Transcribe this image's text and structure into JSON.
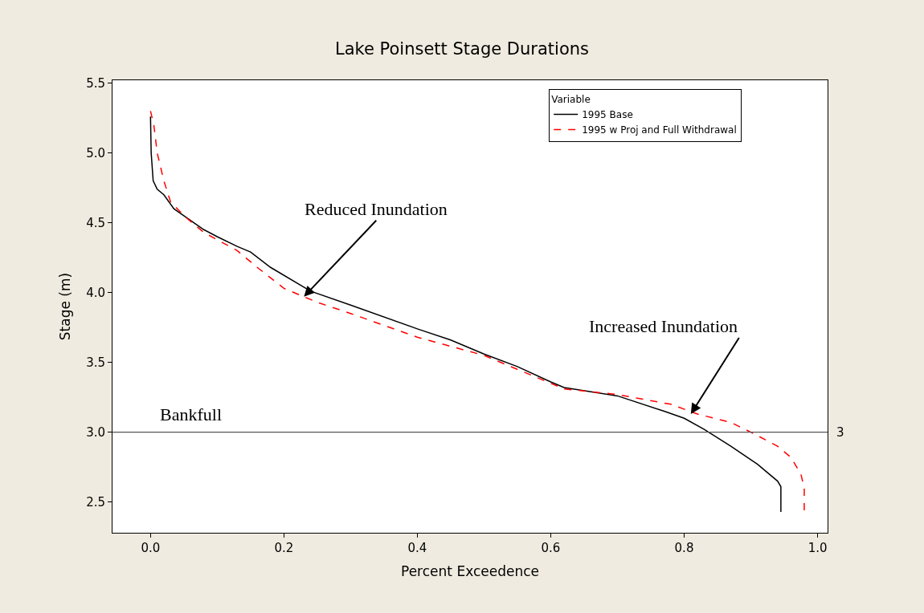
{
  "chart_data": {
    "type": "line",
    "title": "Lake Poinsett Stage Durations",
    "xlabel": "Percent Exceedence",
    "ylabel": "Stage (m)",
    "legend_title": "Variable",
    "xlim": [
      -0.057,
      1.015
    ],
    "ylim": [
      2.28,
      5.52
    ],
    "xticks": [
      {
        "value": 0,
        "label": "0.0"
      },
      0.2,
      0.4,
      0.6,
      0.8,
      {
        "value": 1,
        "label": "1.0"
      }
    ],
    "yticks": [
      2.5,
      {
        "value": 3,
        "label": "3.0"
      },
      3.5,
      {
        "value": 4,
        "label": "4.0"
      },
      4.5,
      {
        "value": 5,
        "label": "5.0"
      },
      5.5
    ],
    "legend": "top right",
    "marker": "none",
    "series": [
      {
        "name": "1995 Base",
        "color": "#000000",
        "line_style": "solid",
        "x": [
          0.0,
          0.001,
          0.004,
          0.01,
          0.02,
          0.035,
          0.05,
          0.08,
          0.1,
          0.13,
          0.15,
          0.18,
          0.24,
          0.3,
          0.4,
          0.45,
          0.5,
          0.55,
          0.6,
          0.62,
          0.7,
          0.77,
          0.8,
          0.83,
          0.87,
          0.91,
          0.94,
          0.945,
          0.945
        ],
        "values": [
          5.26,
          5.0,
          4.8,
          4.74,
          4.7,
          4.6,
          4.55,
          4.45,
          4.4,
          4.33,
          4.29,
          4.18,
          4.01,
          3.91,
          3.74,
          3.66,
          3.56,
          3.47,
          3.36,
          3.32,
          3.26,
          3.15,
          3.1,
          3.02,
          2.9,
          2.77,
          2.65,
          2.61,
          2.43
        ]
      },
      {
        "name": "1995 w Proj and Full Withdrawal",
        "color": "#ff0000",
        "line_style": "dashed",
        "x": [
          0.0,
          0.005,
          0.01,
          0.02,
          0.03,
          0.05,
          0.08,
          0.13,
          0.16,
          0.2,
          0.25,
          0.3,
          0.4,
          0.5,
          0.6,
          0.62,
          0.7,
          0.78,
          0.82,
          0.87,
          0.9,
          0.94,
          0.96,
          0.975,
          0.98,
          0.98
        ],
        "values": [
          5.3,
          5.2,
          5.0,
          4.8,
          4.65,
          4.55,
          4.43,
          4.3,
          4.18,
          4.03,
          3.93,
          3.85,
          3.68,
          3.55,
          3.35,
          3.31,
          3.27,
          3.2,
          3.13,
          3.07,
          3.0,
          2.9,
          2.82,
          2.7,
          2.6,
          2.43
        ]
      }
    ],
    "ref_lines": [
      {
        "axis": "y",
        "value": 3,
        "label": "3",
        "color": "#555555"
      }
    ],
    "annotations": [
      {
        "text": "Reduced Inundation",
        "x": 0.23,
        "y": 3.97
      },
      {
        "text": "Increased Inundation",
        "x": 0.81,
        "y": 3.13
      },
      {
        "text": "Bankfull",
        "x": 0.06,
        "y": 3.0
      }
    ]
  }
}
